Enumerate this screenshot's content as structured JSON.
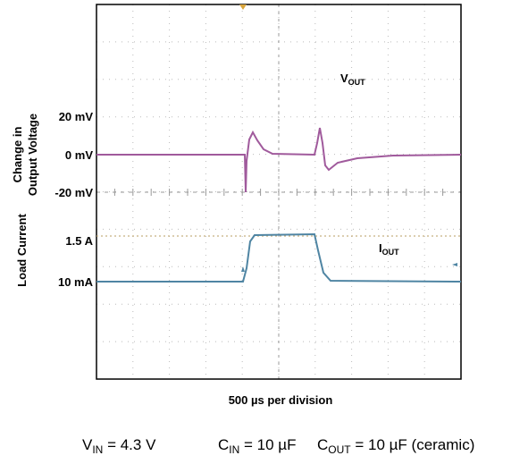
{
  "plot": {
    "voltage_axis_title": [
      "Change in",
      "Output Voltage"
    ],
    "current_axis_title": "Load Current",
    "voltage_levels": [
      "20 mV",
      "0 mV",
      "-20 mV"
    ],
    "current_levels": [
      "1.5 A",
      "10 mA"
    ],
    "vout_label": {
      "main": "V",
      "sub": "OUT"
    },
    "iout_label": {
      "main": "I",
      "sub": "OUT"
    },
    "time_scale": "500 µs per division"
  },
  "conditions": [
    {
      "main": "V",
      "sub": "IN",
      "rest": " = 4.3 V"
    },
    {
      "main": "C",
      "sub": "IN",
      "rest": " = 10 µF"
    },
    {
      "main": "C",
      "sub": "OUT",
      "rest": " = 10 µF (ceramic)"
    }
  ]
}
